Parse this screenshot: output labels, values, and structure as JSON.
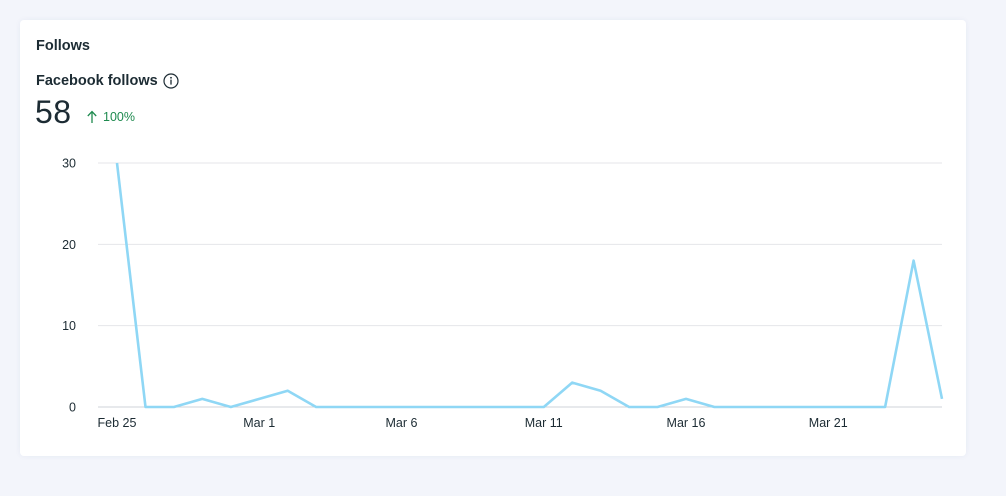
{
  "card": {
    "title": "Follows"
  },
  "metric": {
    "label": "Facebook follows",
    "value": "58",
    "change": "100%",
    "change_direction": "up",
    "change_color": "#1e8a4f",
    "info_icon": "info-icon"
  },
  "chart_data": {
    "type": "line",
    "title": "",
    "xlabel": "",
    "ylabel": "",
    "ylim": [
      0,
      30
    ],
    "yticks": [
      0,
      10,
      20,
      30
    ],
    "grid": true,
    "line_color": "#8fd7f5",
    "x_tick_labels": [
      "Feb 25",
      "Mar 1",
      "Mar 6",
      "Mar 11",
      "Mar 16",
      "Mar 21"
    ],
    "x": [
      "Feb 25",
      "Feb 26",
      "Feb 27",
      "Feb 28",
      "Feb 29",
      "Mar 1",
      "Mar 2",
      "Mar 3",
      "Mar 4",
      "Mar 5",
      "Mar 6",
      "Mar 7",
      "Mar 8",
      "Mar 9",
      "Mar 10",
      "Mar 11",
      "Mar 12",
      "Mar 13",
      "Mar 14",
      "Mar 15",
      "Mar 16",
      "Mar 17",
      "Mar 18",
      "Mar 19",
      "Mar 20",
      "Mar 21",
      "Mar 22",
      "Mar 23",
      "Mar 24",
      "Mar 25"
    ],
    "series": [
      {
        "values": [
          30,
          0,
          0,
          1,
          0,
          1,
          2,
          0,
          0,
          0,
          0,
          0,
          0,
          0,
          0,
          0,
          3,
          2,
          0,
          0,
          1,
          0,
          0,
          0,
          0,
          0,
          0,
          0,
          18,
          1
        ]
      }
    ]
  }
}
